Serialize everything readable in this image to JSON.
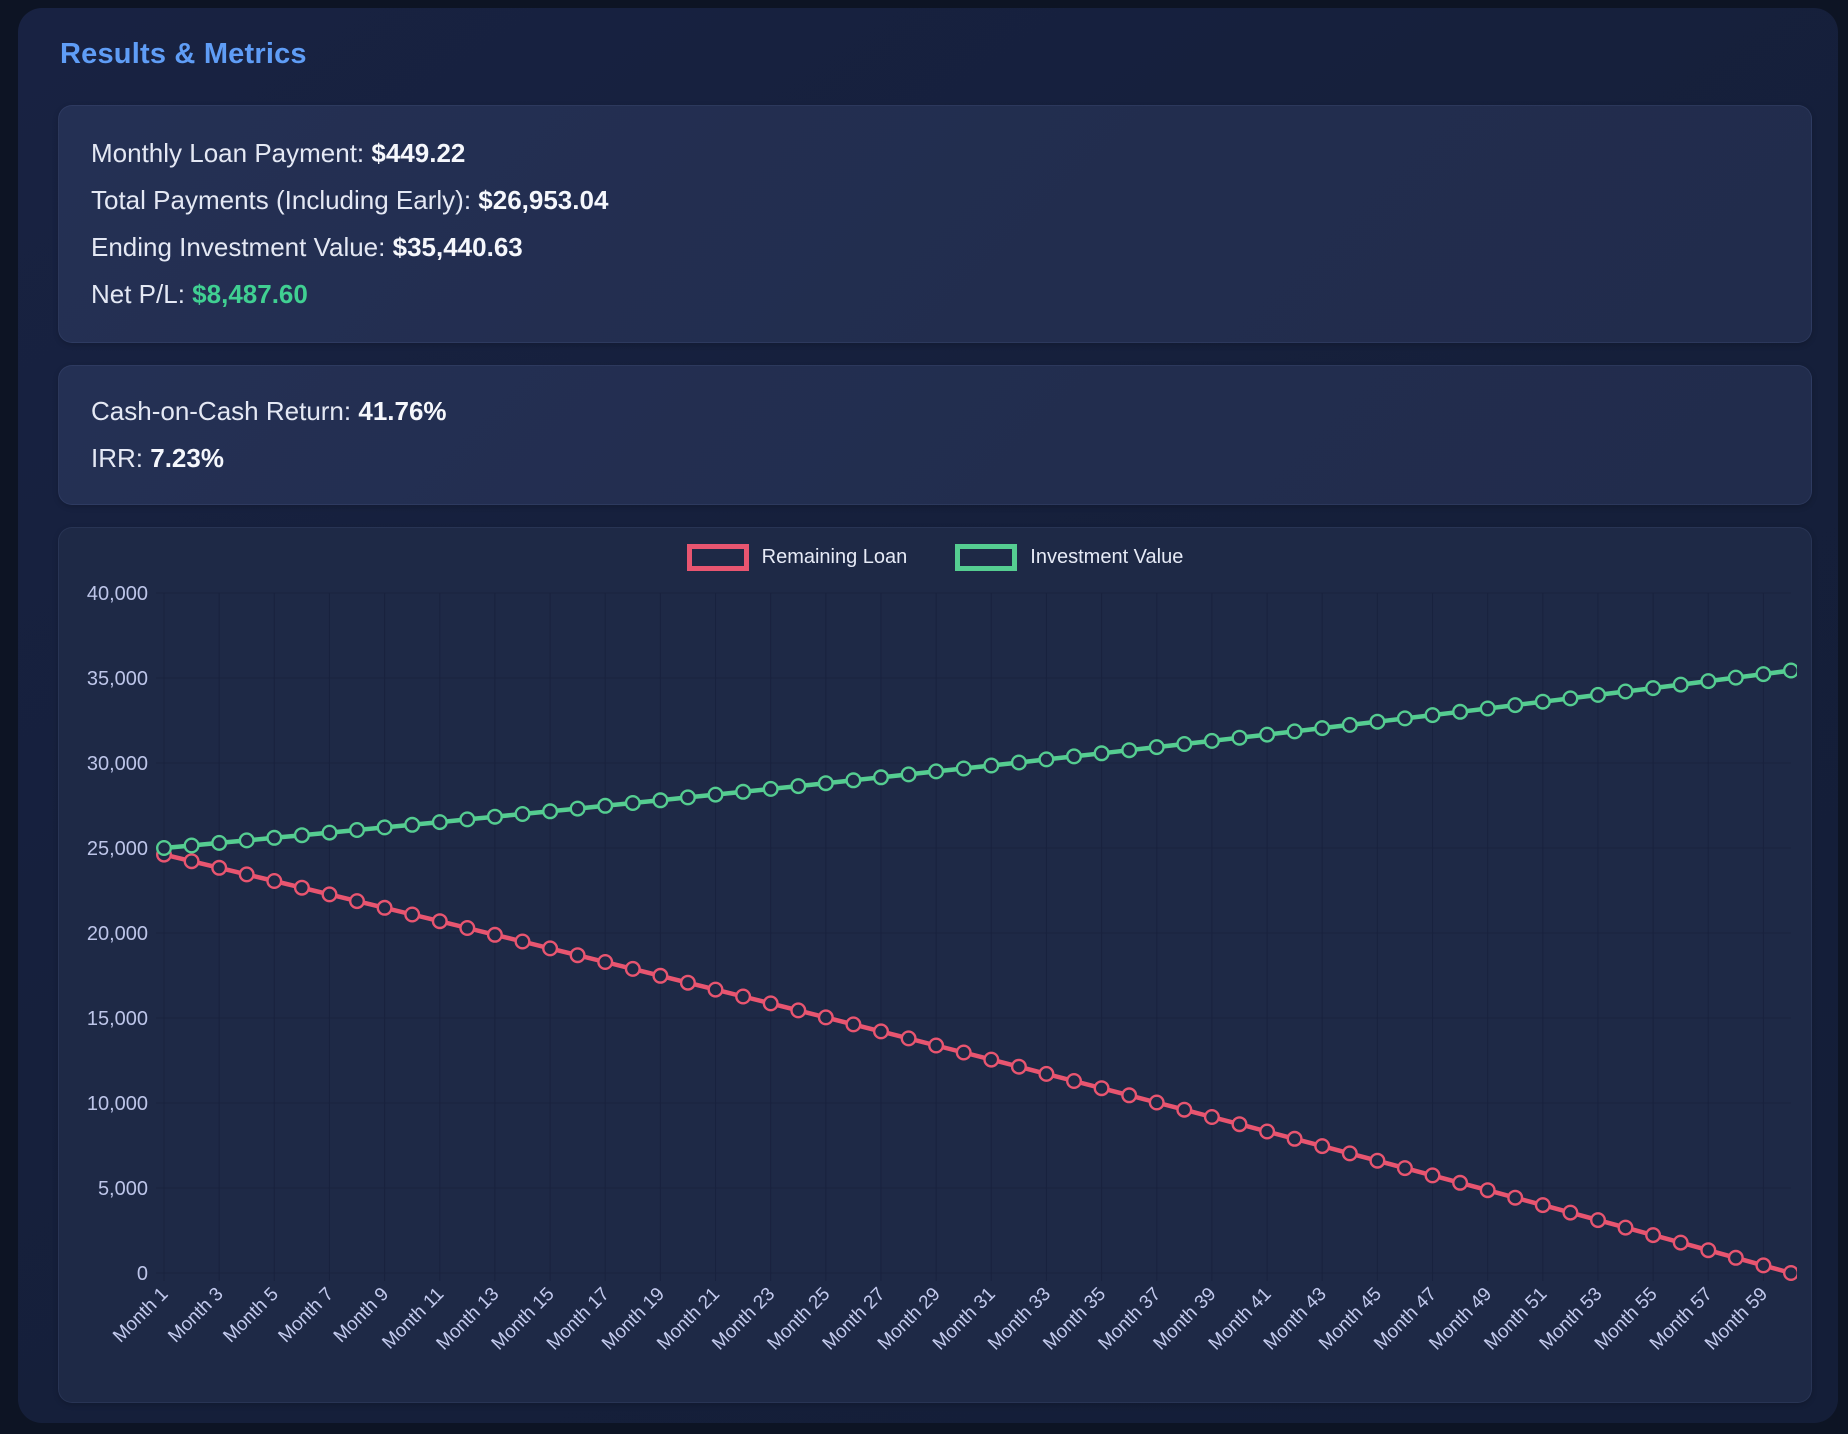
{
  "panel": {
    "title": "Results & Metrics"
  },
  "metrics_primary": {
    "rows": [
      {
        "label": "Monthly Loan Payment:",
        "value": "$449.22"
      },
      {
        "label": "Total Payments (Including Early):",
        "value": "$26,953.04"
      },
      {
        "label": "Ending Investment Value:",
        "value": "$35,440.63"
      },
      {
        "label": "Net P/L:",
        "value": "$8,487.60"
      }
    ]
  },
  "metrics_secondary": {
    "rows": [
      {
        "label": "Cash-on-Cash Return:",
        "value": "41.76%"
      },
      {
        "label": "IRR:",
        "value": "7.23%"
      }
    ]
  },
  "colors": {
    "accent_blue": "#5f9df6",
    "profit_green": "#40d092",
    "loan_red": "#e85570",
    "investment_green": "#55cd91",
    "chart_bg": "#1e2946",
    "grid": "#19223e",
    "tick_text": "#c3caee"
  },
  "chart_data": {
    "type": "line",
    "title": "",
    "xlabel": "",
    "ylabel": "",
    "ylim": [
      0,
      40000
    ],
    "y_ticks": [
      0,
      5000,
      10000,
      15000,
      20000,
      25000,
      30000,
      35000,
      40000
    ],
    "x_tick_every": 2,
    "grid": true,
    "legend_position": "top",
    "point_style": "hollow-circle",
    "categories": [
      "Month 1",
      "Month 2",
      "Month 3",
      "Month 4",
      "Month 5",
      "Month 6",
      "Month 7",
      "Month 8",
      "Month 9",
      "Month 10",
      "Month 11",
      "Month 12",
      "Month 13",
      "Month 14",
      "Month 15",
      "Month 16",
      "Month 17",
      "Month 18",
      "Month 19",
      "Month 20",
      "Month 21",
      "Month 22",
      "Month 23",
      "Month 24",
      "Month 25",
      "Month 26",
      "Month 27",
      "Month 28",
      "Month 29",
      "Month 30",
      "Month 31",
      "Month 32",
      "Month 33",
      "Month 34",
      "Month 35",
      "Month 36",
      "Month 37",
      "Month 38",
      "Month 39",
      "Month 40",
      "Month 41",
      "Month 42",
      "Month 43",
      "Month 44",
      "Month 45",
      "Month 46",
      "Month 47",
      "Month 48",
      "Month 49",
      "Month 50",
      "Month 51",
      "Month 52",
      "Month 53",
      "Month 54",
      "Month 55",
      "Month 56",
      "Month 57",
      "Month 58",
      "Month 59",
      "Month 60"
    ],
    "series": [
      {
        "name": "Remaining Loan",
        "color": "#e85570",
        "values": [
          24613.28,
          24225.59,
          23836.93,
          23447.31,
          23056.7,
          22665.13,
          22272.57,
          21879.03,
          21484.51,
          21089.01,
          20692.51,
          20295.02,
          19896.54,
          19497.07,
          19096.59,
          18695.11,
          18292.63,
          17889.14,
          17484.65,
          17079.14,
          16672.61,
          16265.07,
          15856.51,
          15446.93,
          15036.33,
          14624.71,
          14212.05,
          13798.37,
          13383.64,
          12967.88,
          12551.08,
          12133.24,
          11714.36,
          11294.42,
          10873.44,
          10451.4,
          10028.31,
          9604.16,
          9178.95,
          8752.68,
          8325.34,
          7896.93,
          7467.45,
          7036.9,
          6605.27,
          6172.57,
          5738.78,
          5303.91,
          4867.95,
          4430.9,
          3992.76,
          3553.53,
          3113.2,
          2671.77,
          2229.23,
          1785.59,
          1340.84,
          894.98,
          448.01,
          0.0
        ]
      },
      {
        "name": "Investment Value",
        "color": "#55cd91",
        "values": [
          25000.0,
          25148.31,
          25297.51,
          25447.58,
          25598.55,
          25750.41,
          25903.18,
          26056.85,
          26211.43,
          26366.93,
          26523.35,
          26680.7,
          26838.98,
          26998.2,
          27158.37,
          27319.48,
          27481.56,
          27644.59,
          27808.59,
          27973.57,
          28139.52,
          28306.46,
          28474.39,
          28643.31,
          28813.24,
          28984.17,
          29156.12,
          29329.09,
          29503.09,
          29678.12,
          29854.18,
          30031.29,
          30209.46,
          30388.67,
          30568.96,
          30750.31,
          30932.74,
          31116.25,
          31300.85,
          31486.54,
          31673.34,
          31861.24,
          32050.26,
          32240.4,
          32431.67,
          32624.07,
          32817.62,
          33012.31,
          33208.16,
          33405.17,
          33603.35,
          33802.7,
          34003.24,
          34204.97,
          34407.89,
          34612.02,
          34817.36,
          35023.92,
          35231.7,
          35440.63
        ]
      }
    ]
  }
}
